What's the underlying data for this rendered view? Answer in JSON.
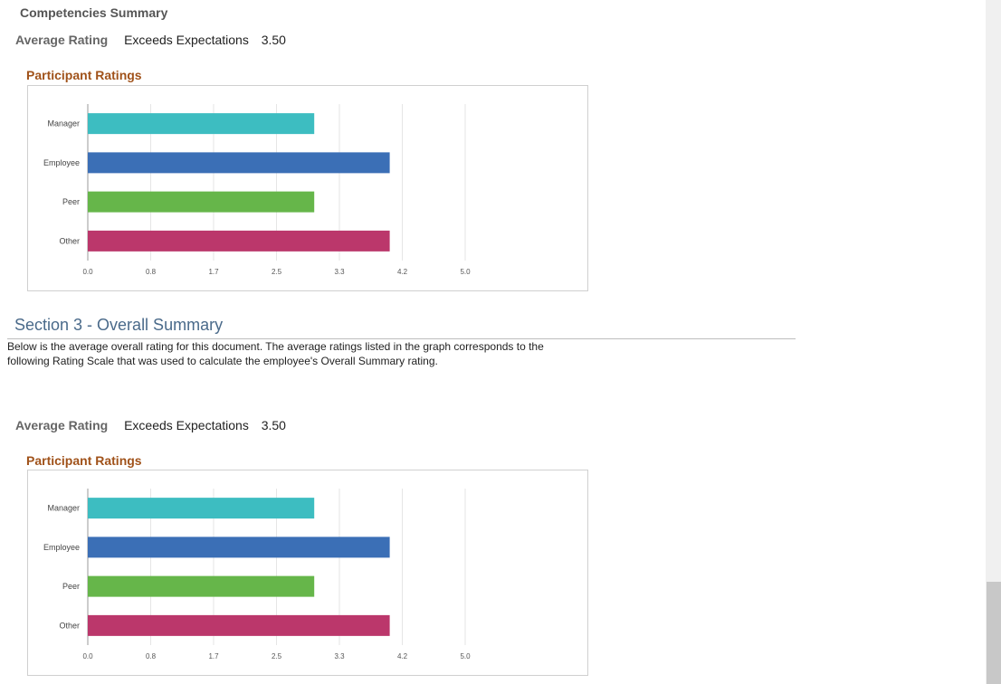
{
  "competencies": {
    "title": "Competencies Summary",
    "avg_label": "Average Rating",
    "avg_text": "Exceeds Expectations",
    "avg_value": "3.50",
    "participant_title": "Participant Ratings"
  },
  "overall": {
    "title": "Section 3 - Overall Summary",
    "desc_line1": "Below is the average overall rating for this document. The average ratings listed in the graph corresponds to the",
    "desc_line2": "following Rating Scale that was used to calculate the employee's Overall Summary rating.",
    "avg_label": "Average Rating",
    "avg_text": "Exceeds Expectations",
    "avg_value": "3.50",
    "participant_title": "Participant Ratings"
  },
  "colors": {
    "Manager": "#3dbdc1",
    "Employee": "#3b6fb6",
    "Peer": "#66b64a",
    "Other": "#bb376b"
  },
  "chart_data": [
    {
      "type": "bar",
      "orientation": "horizontal",
      "categories": [
        "Manager",
        "Employee",
        "Peer",
        "Other"
      ],
      "values": [
        3.0,
        4.0,
        3.0,
        4.0
      ],
      "xticks": [
        "0.0",
        "0.8",
        "1.7",
        "2.5",
        "3.3",
        "4.2",
        "5.0"
      ],
      "xlim": [
        0,
        5
      ],
      "grid": true
    },
    {
      "type": "bar",
      "orientation": "horizontal",
      "categories": [
        "Manager",
        "Employee",
        "Peer",
        "Other"
      ],
      "values": [
        3.0,
        4.0,
        3.0,
        4.0
      ],
      "xticks": [
        "0.0",
        "0.8",
        "1.7",
        "2.5",
        "3.3",
        "4.2",
        "5.0"
      ],
      "xlim": [
        0,
        5
      ],
      "grid": true
    }
  ]
}
